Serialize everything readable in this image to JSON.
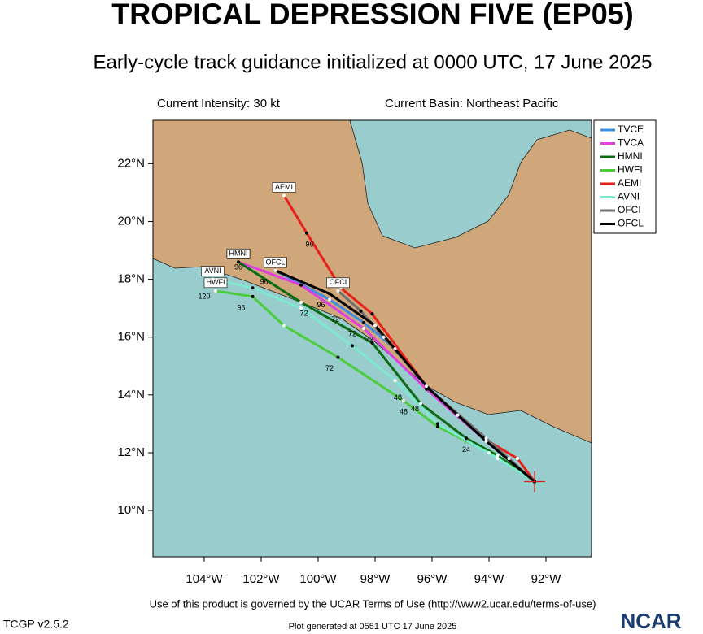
{
  "chart_data": {
    "type": "track",
    "title": "TROPICAL DEPRESSION FIVE (EP05)",
    "subtitle": "Early-cycle track guidance initialized at 0000 UTC, 17 June 2025",
    "intensity": "Current Intensity: 30 kt",
    "basin": "Current Basin: Northeast Pacific",
    "xlim": [
      -105.8,
      -90.4
    ],
    "ylim": [
      8.4,
      23.5
    ],
    "xticks": [
      {
        "value": -104,
        "label": "104°W"
      },
      {
        "value": -102,
        "label": "102°W"
      },
      {
        "value": -100,
        "label": "100°W"
      },
      {
        "value": -98,
        "label": "98°W"
      },
      {
        "value": -96,
        "label": "96°W"
      },
      {
        "value": -94,
        "label": "94°W"
      },
      {
        "value": -92,
        "label": "92°W"
      }
    ],
    "yticks": [
      {
        "value": 10,
        "label": "10°N"
      },
      {
        "value": 12,
        "label": "12°N"
      },
      {
        "value": 14,
        "label": "14°N"
      },
      {
        "value": 16,
        "label": "16°N"
      },
      {
        "value": 18,
        "label": "18°N"
      },
      {
        "value": 20,
        "label": "20°N"
      },
      {
        "value": 22,
        "label": "22°N"
      }
    ],
    "start": {
      "x": -92.4,
      "y": 11.0
    },
    "series": [
      {
        "name": "TVCE",
        "color": "#3a8ee6",
        "x": [
          -92.4,
          -93.3,
          -94.1,
          -95.1,
          -96.2,
          -97.3,
          -98.4,
          -99.6,
          -101.5
        ],
        "values": [
          11.0,
          11.8,
          12.4,
          13.3,
          14.3,
          15.6,
          16.5,
          17.3,
          18.3
        ]
      },
      {
        "name": "TVCA",
        "color": "#e040e0",
        "x": [
          -92.4,
          -94.1,
          -96.2,
          -98.4,
          -100.6,
          -102.8
        ],
        "values": [
          11.0,
          12.4,
          14.2,
          16.3,
          17.8,
          18.6
        ]
      },
      {
        "name": "HMNI",
        "color": "#0b6b12",
        "x": [
          -92.4,
          -93.7,
          -94.8,
          -96.4,
          -98.1,
          -100.6,
          -102.8
        ],
        "values": [
          11.0,
          11.9,
          12.5,
          13.7,
          15.8,
          17.2,
          18.6
        ]
      },
      {
        "name": "HWFI",
        "color": "#4ccc3c",
        "x": [
          -92.4,
          -94.0,
          -95.8,
          -97.0,
          -99.3,
          -101.2,
          -102.3,
          -103.6
        ],
        "values": [
          11.0,
          12.0,
          12.9,
          13.8,
          15.3,
          16.4,
          17.4,
          17.6
        ]
      },
      {
        "name": "AEMI",
        "color": "#e8201a",
        "x": [
          -92.4,
          -93.0,
          -94.2,
          -96.2,
          -98.1,
          -99.2,
          -100.4,
          -101.2
        ],
        "values": [
          11.0,
          11.8,
          12.5,
          14.3,
          16.8,
          17.7,
          19.6,
          20.9
        ]
      },
      {
        "name": "AVNI",
        "color": "#7ee8d0",
        "x": [
          -92.4,
          -93.7,
          -95.8,
          -97.3,
          -98.8,
          -100.6,
          -102.3,
          -103.7
        ],
        "values": [
          11.0,
          11.8,
          13.0,
          14.5,
          15.7,
          17.0,
          17.7,
          18.0
        ]
      },
      {
        "name": "OFCI",
        "color": "#707070",
        "x": [
          -92.4,
          -94.1,
          -96.1,
          -97.7,
          -98.5,
          -99.3
        ],
        "values": [
          11.0,
          12.5,
          14.2,
          16.0,
          16.9,
          17.6
        ]
      },
      {
        "name": "OFCL",
        "color": "#000000",
        "x": [
          -92.4,
          -94.1,
          -96.1,
          -98.0,
          -99.6,
          -101.5
        ],
        "values": [
          11.0,
          12.4,
          14.2,
          16.4,
          17.5,
          18.3
        ]
      }
    ],
    "hour_labels": [
      {
        "text": "120",
        "x": -104.0,
        "y": 17.4
      },
      {
        "text": "96",
        "x": -102.8,
        "y": 18.4
      },
      {
        "text": "96",
        "x": -101.9,
        "y": 17.9
      },
      {
        "text": "96",
        "x": -100.3,
        "y": 19.2
      },
      {
        "text": "96",
        "x": -99.9,
        "y": 17.1
      },
      {
        "text": "96",
        "x": -102.7,
        "y": 17.0
      },
      {
        "text": "72",
        "x": -99.4,
        "y": 16.6
      },
      {
        "text": "72",
        "x": -100.5,
        "y": 16.8
      },
      {
        "text": "72",
        "x": -98.8,
        "y": 16.1
      },
      {
        "text": "72",
        "x": -98.2,
        "y": 15.9
      },
      {
        "text": "72",
        "x": -99.6,
        "y": 14.9
      },
      {
        "text": "48",
        "x": -97.2,
        "y": 13.9
      },
      {
        "text": "48",
        "x": -97.0,
        "y": 13.4
      },
      {
        "text": "48",
        "x": -96.6,
        "y": 13.5
      },
      {
        "text": "24",
        "x": -94.8,
        "y": 12.1
      }
    ],
    "terms": "Use of this product is governed by the UCAR Terms of Use (http://www2.ucar.edu/terms-of-use)",
    "version": "TCGP v2.5.2",
    "generated": "Plot generated at 0551 UTC   17 June 2025",
    "logo": "NCAR"
  }
}
